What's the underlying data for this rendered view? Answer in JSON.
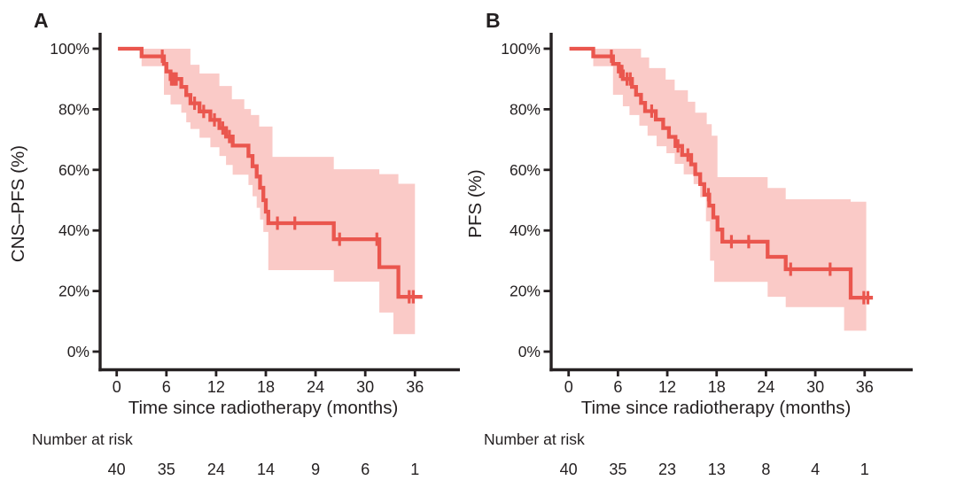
{
  "figure": {
    "background": "#ffffff",
    "text_color": "#231f20",
    "axis_color": "#262122"
  },
  "chart_data": [
    {
      "type": "line",
      "subtype": "kaplan-meier-step",
      "panel_label": "A",
      "ylabel": "CNS–PFS (%)",
      "xlabel": "Time since radiotherapy (months)",
      "risk_label": "Number at risk",
      "legend_position": "none",
      "grid": false,
      "xlim": [
        -2,
        41.5
      ],
      "ylim": [
        0,
        100
      ],
      "x_ticks": [
        0,
        6,
        12,
        18,
        24,
        30,
        36
      ],
      "x_tick_labels": [
        "0",
        "6",
        "12",
        "18",
        "24",
        "30",
        "36"
      ],
      "y_ticks": [
        0,
        20,
        40,
        60,
        80,
        100
      ],
      "y_tick_labels": [
        "0%",
        "20%",
        "40%",
        "60%",
        "80%",
        "100%"
      ],
      "number_at_risk": [
        "40",
        "35",
        "24",
        "14",
        "9",
        "6",
        "1"
      ],
      "curve_color": "#ea564e",
      "band_color": "#facac7",
      "curve_end": 36.9,
      "steps": [
        [
          0.15,
          100
        ],
        [
          3.0,
          97.5
        ],
        [
          5.7,
          95.0
        ],
        [
          6.0,
          92.5
        ],
        [
          6.5,
          90.0
        ],
        [
          7.8,
          87.4
        ],
        [
          8.4,
          84.7
        ],
        [
          8.9,
          82.0
        ],
        [
          10.0,
          79.3
        ],
        [
          11.3,
          76.5
        ],
        [
          12.4,
          73.8
        ],
        [
          13.2,
          71.0
        ],
        [
          14.0,
          68.0
        ],
        [
          15.9,
          64.6
        ],
        [
          16.4,
          61.2
        ],
        [
          16.9,
          57.8
        ],
        [
          17.3,
          54.1
        ],
        [
          17.7,
          50.0
        ],
        [
          18.0,
          46.2
        ],
        [
          18.3,
          42.4
        ],
        [
          26.2,
          37.1
        ],
        [
          31.7,
          27.9
        ],
        [
          34.0,
          18.1
        ]
      ],
      "censors": [
        [
          5.5,
          97.5
        ],
        [
          6.6,
          90.0
        ],
        [
          6.8,
          90.0
        ],
        [
          7.0,
          90.0
        ],
        [
          7.2,
          90.0
        ],
        [
          9.4,
          82.0
        ],
        [
          10.5,
          79.3
        ],
        [
          11.8,
          76.5
        ],
        [
          12.8,
          73.8
        ],
        [
          13.6,
          71.0
        ],
        [
          19.4,
          42.4
        ],
        [
          21.5,
          42.4
        ],
        [
          26.9,
          37.1
        ],
        [
          31.4,
          37.1
        ],
        [
          35.3,
          18.1
        ],
        [
          35.8,
          18.1
        ]
      ],
      "band": {
        "end": 36.0,
        "upper": [
          [
            3.0,
            100
          ],
          [
            8.9,
            94.7
          ],
          [
            10.0,
            91.8
          ],
          [
            12.4,
            87.7
          ],
          [
            13.9,
            83.3
          ],
          [
            15.4,
            80.1
          ],
          [
            16.2,
            78.1
          ],
          [
            17.2,
            74.3
          ],
          [
            18.8,
            64.3
          ],
          [
            26.2,
            60.2
          ],
          [
            31.7,
            58.6
          ],
          [
            34.0,
            55.4
          ]
        ],
        "lower": [
          [
            3.0,
            94.2
          ],
          [
            5.7,
            84.8
          ],
          [
            6.5,
            81.6
          ],
          [
            7.8,
            78.9
          ],
          [
            8.4,
            75.7
          ],
          [
            8.9,
            73.5
          ],
          [
            10.0,
            70.6
          ],
          [
            11.3,
            67.5
          ],
          [
            12.4,
            64.6
          ],
          [
            13.2,
            61.6
          ],
          [
            14.0,
            58.4
          ],
          [
            15.9,
            55.0
          ],
          [
            16.4,
            51.3
          ],
          [
            16.9,
            47.5
          ],
          [
            17.3,
            43.6
          ],
          [
            17.7,
            39.5
          ],
          [
            18.3,
            26.9
          ],
          [
            26.2,
            23.1
          ],
          [
            31.7,
            12.9
          ],
          [
            33.4,
            5.8
          ]
        ]
      }
    },
    {
      "type": "line",
      "subtype": "kaplan-meier-step",
      "panel_label": "B",
      "ylabel": "PFS (%)",
      "xlabel": "Time since radiotherapy (months)",
      "risk_label": "Number at risk",
      "legend_position": "none",
      "grid": false,
      "xlim": [
        -2,
        41.5
      ],
      "ylim": [
        0,
        100
      ],
      "x_ticks": [
        0,
        6,
        12,
        18,
        24,
        30,
        36
      ],
      "x_tick_labels": [
        "0",
        "6",
        "12",
        "18",
        "24",
        "30",
        "36"
      ],
      "y_ticks": [
        0,
        20,
        40,
        60,
        80,
        100
      ],
      "y_tick_labels": [
        "0%",
        "20%",
        "40%",
        "60%",
        "80%",
        "100%"
      ],
      "number_at_risk": [
        "40",
        "35",
        "23",
        "13",
        "8",
        "4",
        "1"
      ],
      "curve_color": "#ea564e",
      "band_color": "#facac7",
      "curve_end": 37.0,
      "steps": [
        [
          0.1,
          100
        ],
        [
          3.0,
          97.5
        ],
        [
          5.4,
          95.0
        ],
        [
          6.1,
          92.5
        ],
        [
          6.6,
          90.0
        ],
        [
          7.7,
          87.4
        ],
        [
          8.2,
          84.8
        ],
        [
          8.8,
          82.1
        ],
        [
          9.3,
          79.4
        ],
        [
          10.6,
          76.6
        ],
        [
          11.5,
          73.8
        ],
        [
          12.2,
          70.9
        ],
        [
          13.0,
          67.9
        ],
        [
          13.8,
          64.9
        ],
        [
          14.9,
          61.8
        ],
        [
          15.4,
          58.6
        ],
        [
          16.0,
          55.3
        ],
        [
          16.5,
          51.8
        ],
        [
          17.1,
          48.2
        ],
        [
          17.6,
          44.3
        ],
        [
          18.1,
          40.3
        ],
        [
          18.7,
          36.3
        ],
        [
          24.2,
          31.3
        ],
        [
          26.4,
          27.2
        ],
        [
          34.3,
          17.8
        ]
      ],
      "censors": [
        [
          5.2,
          97.5
        ],
        [
          6.3,
          92.5
        ],
        [
          6.5,
          92.5
        ],
        [
          7.1,
          90.0
        ],
        [
          7.5,
          90.0
        ],
        [
          10.1,
          79.4
        ],
        [
          13.3,
          67.9
        ],
        [
          14.5,
          64.9
        ],
        [
          17.0,
          51.8
        ],
        [
          19.8,
          36.3
        ],
        [
          21.9,
          36.3
        ],
        [
          27.0,
          27.2
        ],
        [
          31.8,
          27.2
        ],
        [
          35.9,
          17.8
        ],
        [
          36.4,
          17.8
        ]
      ],
      "band": {
        "end": 36.2,
        "upper": [
          [
            3.0,
            100
          ],
          [
            8.8,
            97.1
          ],
          [
            9.8,
            93.6
          ],
          [
            11.8,
            89.8
          ],
          [
            12.9,
            86.3
          ],
          [
            14.5,
            82.5
          ],
          [
            15.4,
            78.9
          ],
          [
            16.8,
            75.1
          ],
          [
            17.4,
            71.3
          ],
          [
            18.1,
            57.6
          ],
          [
            24.2,
            54.0
          ],
          [
            26.4,
            50.3
          ],
          [
            34.3,
            49.5
          ]
        ],
        "lower": [
          [
            3.0,
            94.2
          ],
          [
            5.4,
            84.8
          ],
          [
            6.6,
            81.0
          ],
          [
            7.4,
            78.1
          ],
          [
            8.6,
            74.6
          ],
          [
            9.6,
            71.3
          ],
          [
            10.7,
            67.8
          ],
          [
            11.9,
            65.5
          ],
          [
            12.9,
            62.0
          ],
          [
            14.0,
            58.5
          ],
          [
            15.2,
            55.3
          ],
          [
            16.0,
            51.0
          ],
          [
            16.7,
            43.0
          ],
          [
            17.2,
            30.0
          ],
          [
            17.7,
            23.0
          ],
          [
            24.2,
            18.1
          ],
          [
            26.4,
            14.7
          ],
          [
            33.5,
            6.9
          ]
        ]
      }
    }
  ]
}
